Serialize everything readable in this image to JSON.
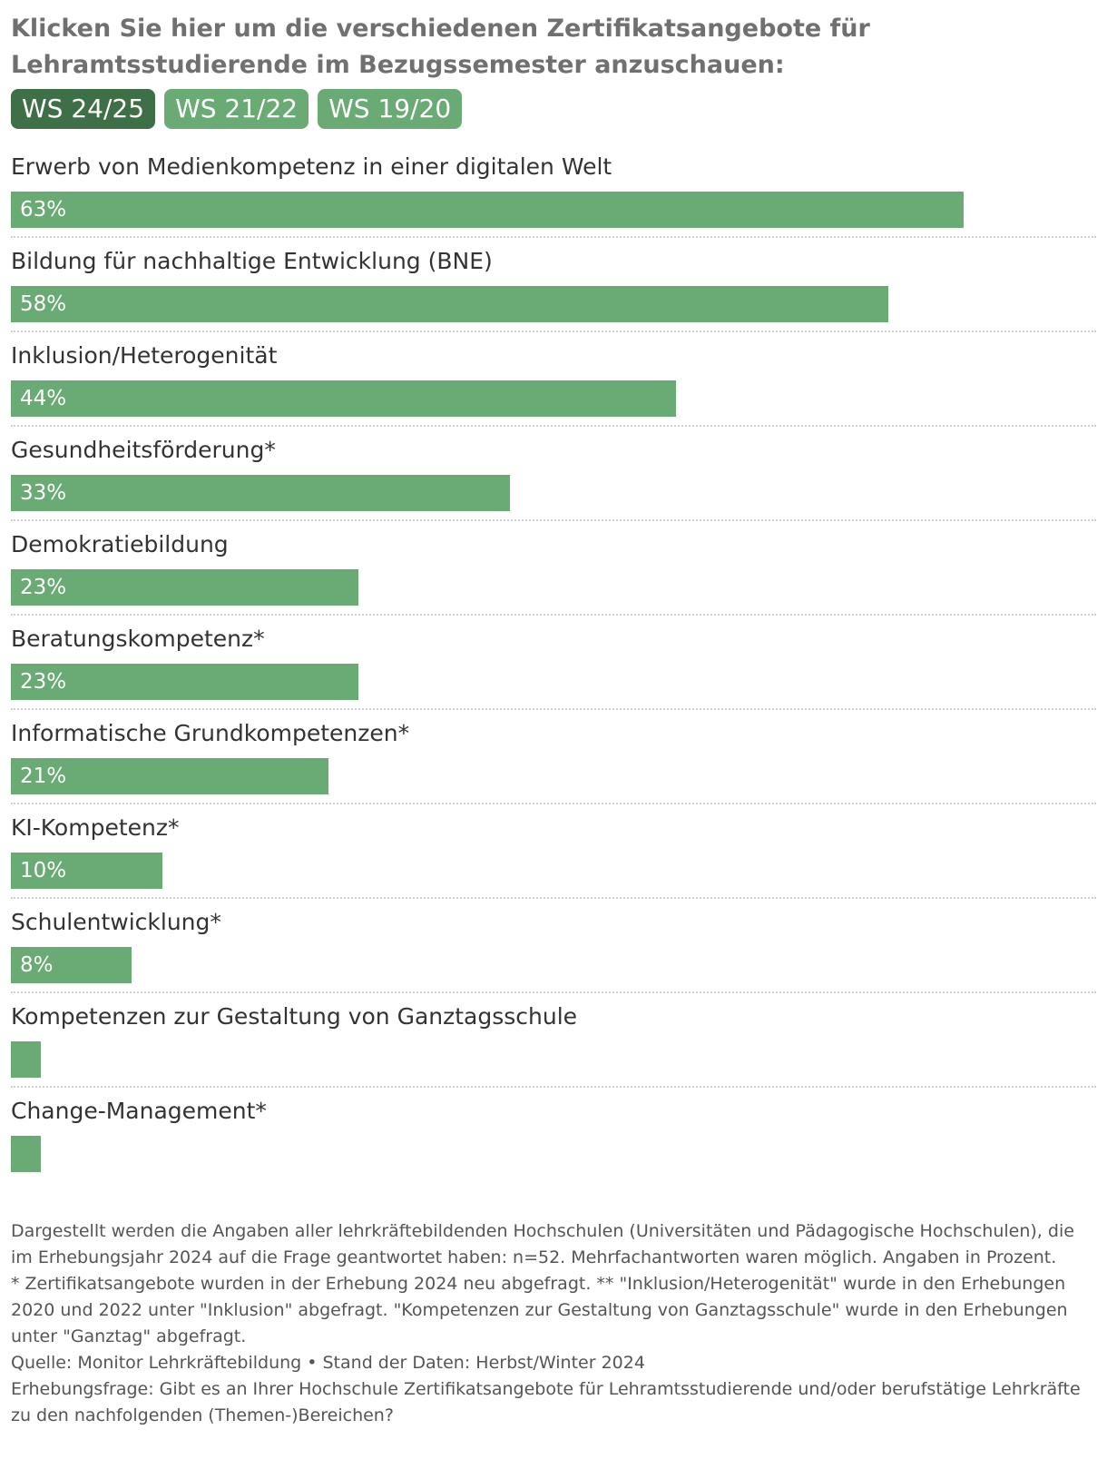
{
  "header": {
    "title": "Klicken Sie hier um die verschiedenen Zertifikatsangebote für Lehramtsstudierende im Bezugssemester anzuschauen:"
  },
  "tabs": [
    {
      "label": "WS 24/25",
      "active": true
    },
    {
      "label": "WS 21/22",
      "active": false
    },
    {
      "label": "WS 19/20",
      "active": false
    }
  ],
  "colors": {
    "bar": "#6aaa75",
    "tab_active": "#3f6f47",
    "tab_inactive": "#6aaa75"
  },
  "chart_data": {
    "type": "bar",
    "orientation": "horizontal",
    "xlim": [
      0,
      66
    ],
    "categories": [
      "Erwerb von Medienkompetenz in einer digitalen Welt",
      "Bildung für nachhaltige Entwicklung (BNE)",
      "Inklusion/Heterogenität",
      "Gesundheitsförderung*",
      "Demokratiebildung",
      "Beratungskompetenz*",
      "Informatische Grundkompetenzen*",
      "KI-Kompetenz*",
      "Schulentwicklung*",
      "Kompetenzen zur Gestaltung von Ganztagsschule",
      "Change-Management*"
    ],
    "values": [
      63,
      58,
      44,
      33,
      23,
      23,
      21,
      10,
      8,
      2,
      2
    ],
    "value_labels": [
      "63%",
      "58%",
      "44%",
      "33%",
      "23%",
      "23%",
      "21%",
      "10%",
      "8%",
      "",
      ""
    ]
  },
  "notes": {
    "methodology": "Dargestellt werden die Angaben aller lehrkräftebildenden Hochschulen (Universitäten und Pädagogische Hochschulen), die im Erhebungsjahr 2024 auf die Frage geantwortet haben: n=52. Mehrfachantworten waren möglich. Angaben in Prozent.",
    "footnote": "* Zertifikatsangebote wurden in der Erhebung 2024 neu abgefragt. ** \"Inklusion/Heterogenität\" wurde in den Erhebungen 2020 und 2022 unter \"Inklusion\" abgefragt. \"Kompetenzen zur Gestaltung von Ganztagsschule\" wurde in den Erhebungen unter \"Ganztag\" abgefragt.",
    "source": "Quelle: Monitor Lehrkräftebildung • Stand der Daten: Herbst/Winter 2024",
    "question": "Erhebungsfrage: Gibt es an Ihrer Hochschule Zertifikatsangebote für Lehramtsstudierende und/oder berufstätige Lehrkräfte zu den nachfolgenden (Themen-)Bereichen?"
  }
}
